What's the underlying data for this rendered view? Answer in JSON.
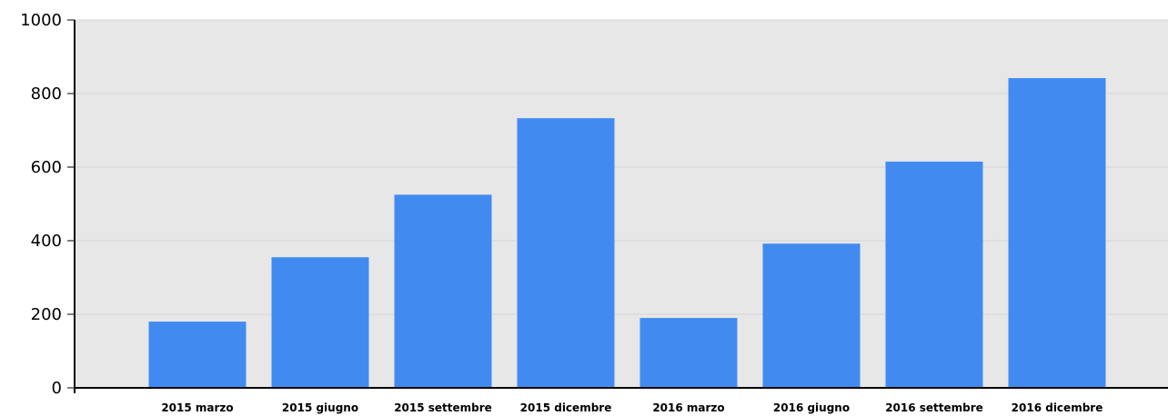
{
  "chart_data": {
    "type": "bar",
    "categories": [
      "2015 marzo",
      "2015 giugno",
      "2015 settembre",
      "2015 dicembre",
      "2016 marzo",
      "2016 giugno",
      "2016 settembre",
      "2016 dicembre"
    ],
    "values": [
      180,
      355,
      525,
      733,
      190,
      392,
      615,
      842
    ],
    "yticks": [
      0,
      200,
      400,
      600,
      800,
      1000
    ],
    "ylim": [
      0,
      1000
    ],
    "title": "",
    "xlabel": "",
    "ylabel": "",
    "grid": true,
    "legend": "none",
    "colors": {
      "bar": "#418bf0",
      "plot_bg": "#e7e7e7",
      "grid": "#d4d4d4",
      "axis": "#000000"
    }
  }
}
